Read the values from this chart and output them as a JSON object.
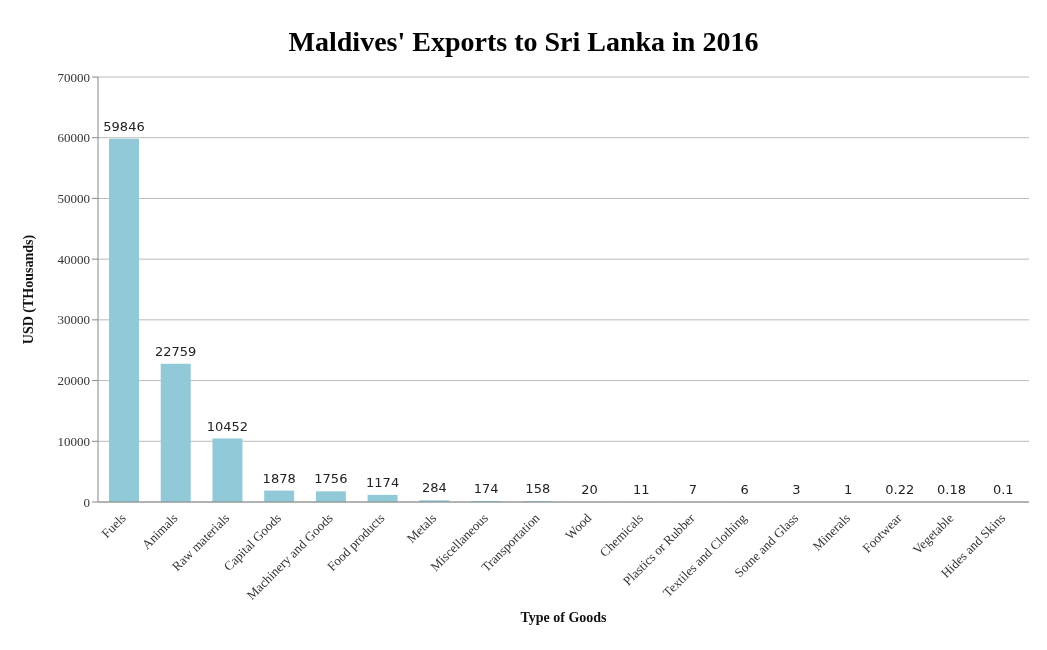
{
  "chart_data": {
    "type": "bar",
    "title": "Maldives' Exports to Sri Lanka in 2016",
    "xlabel": "Type of Goods",
    "ylabel": "USD (THousands)",
    "categories": [
      "Fuels",
      "Animals",
      "Raw materials",
      "Capital Goods",
      "Machinery and Goods",
      "Food products",
      "Metals",
      "Miscellaneous",
      "Transportation",
      "Wood",
      "Chemicals",
      "Plastics or Rubber",
      "Textiles and Clothing",
      "Sotne and Glass",
      "Minerals",
      "Footwear",
      "Vegetable",
      "Hides and Skins"
    ],
    "values": [
      59846,
      22759,
      10452,
      1878,
      1756,
      1174,
      284,
      174,
      158,
      20,
      11,
      7,
      6,
      3,
      1,
      0.22,
      0.18,
      0.1
    ],
    "color": "#92c9d8",
    "ylim": [
      0,
      70000
    ],
    "yticks": [
      0,
      10000,
      20000,
      30000,
      40000,
      50000,
      60000,
      70000
    ],
    "grid": "y",
    "data_labels": true
  }
}
